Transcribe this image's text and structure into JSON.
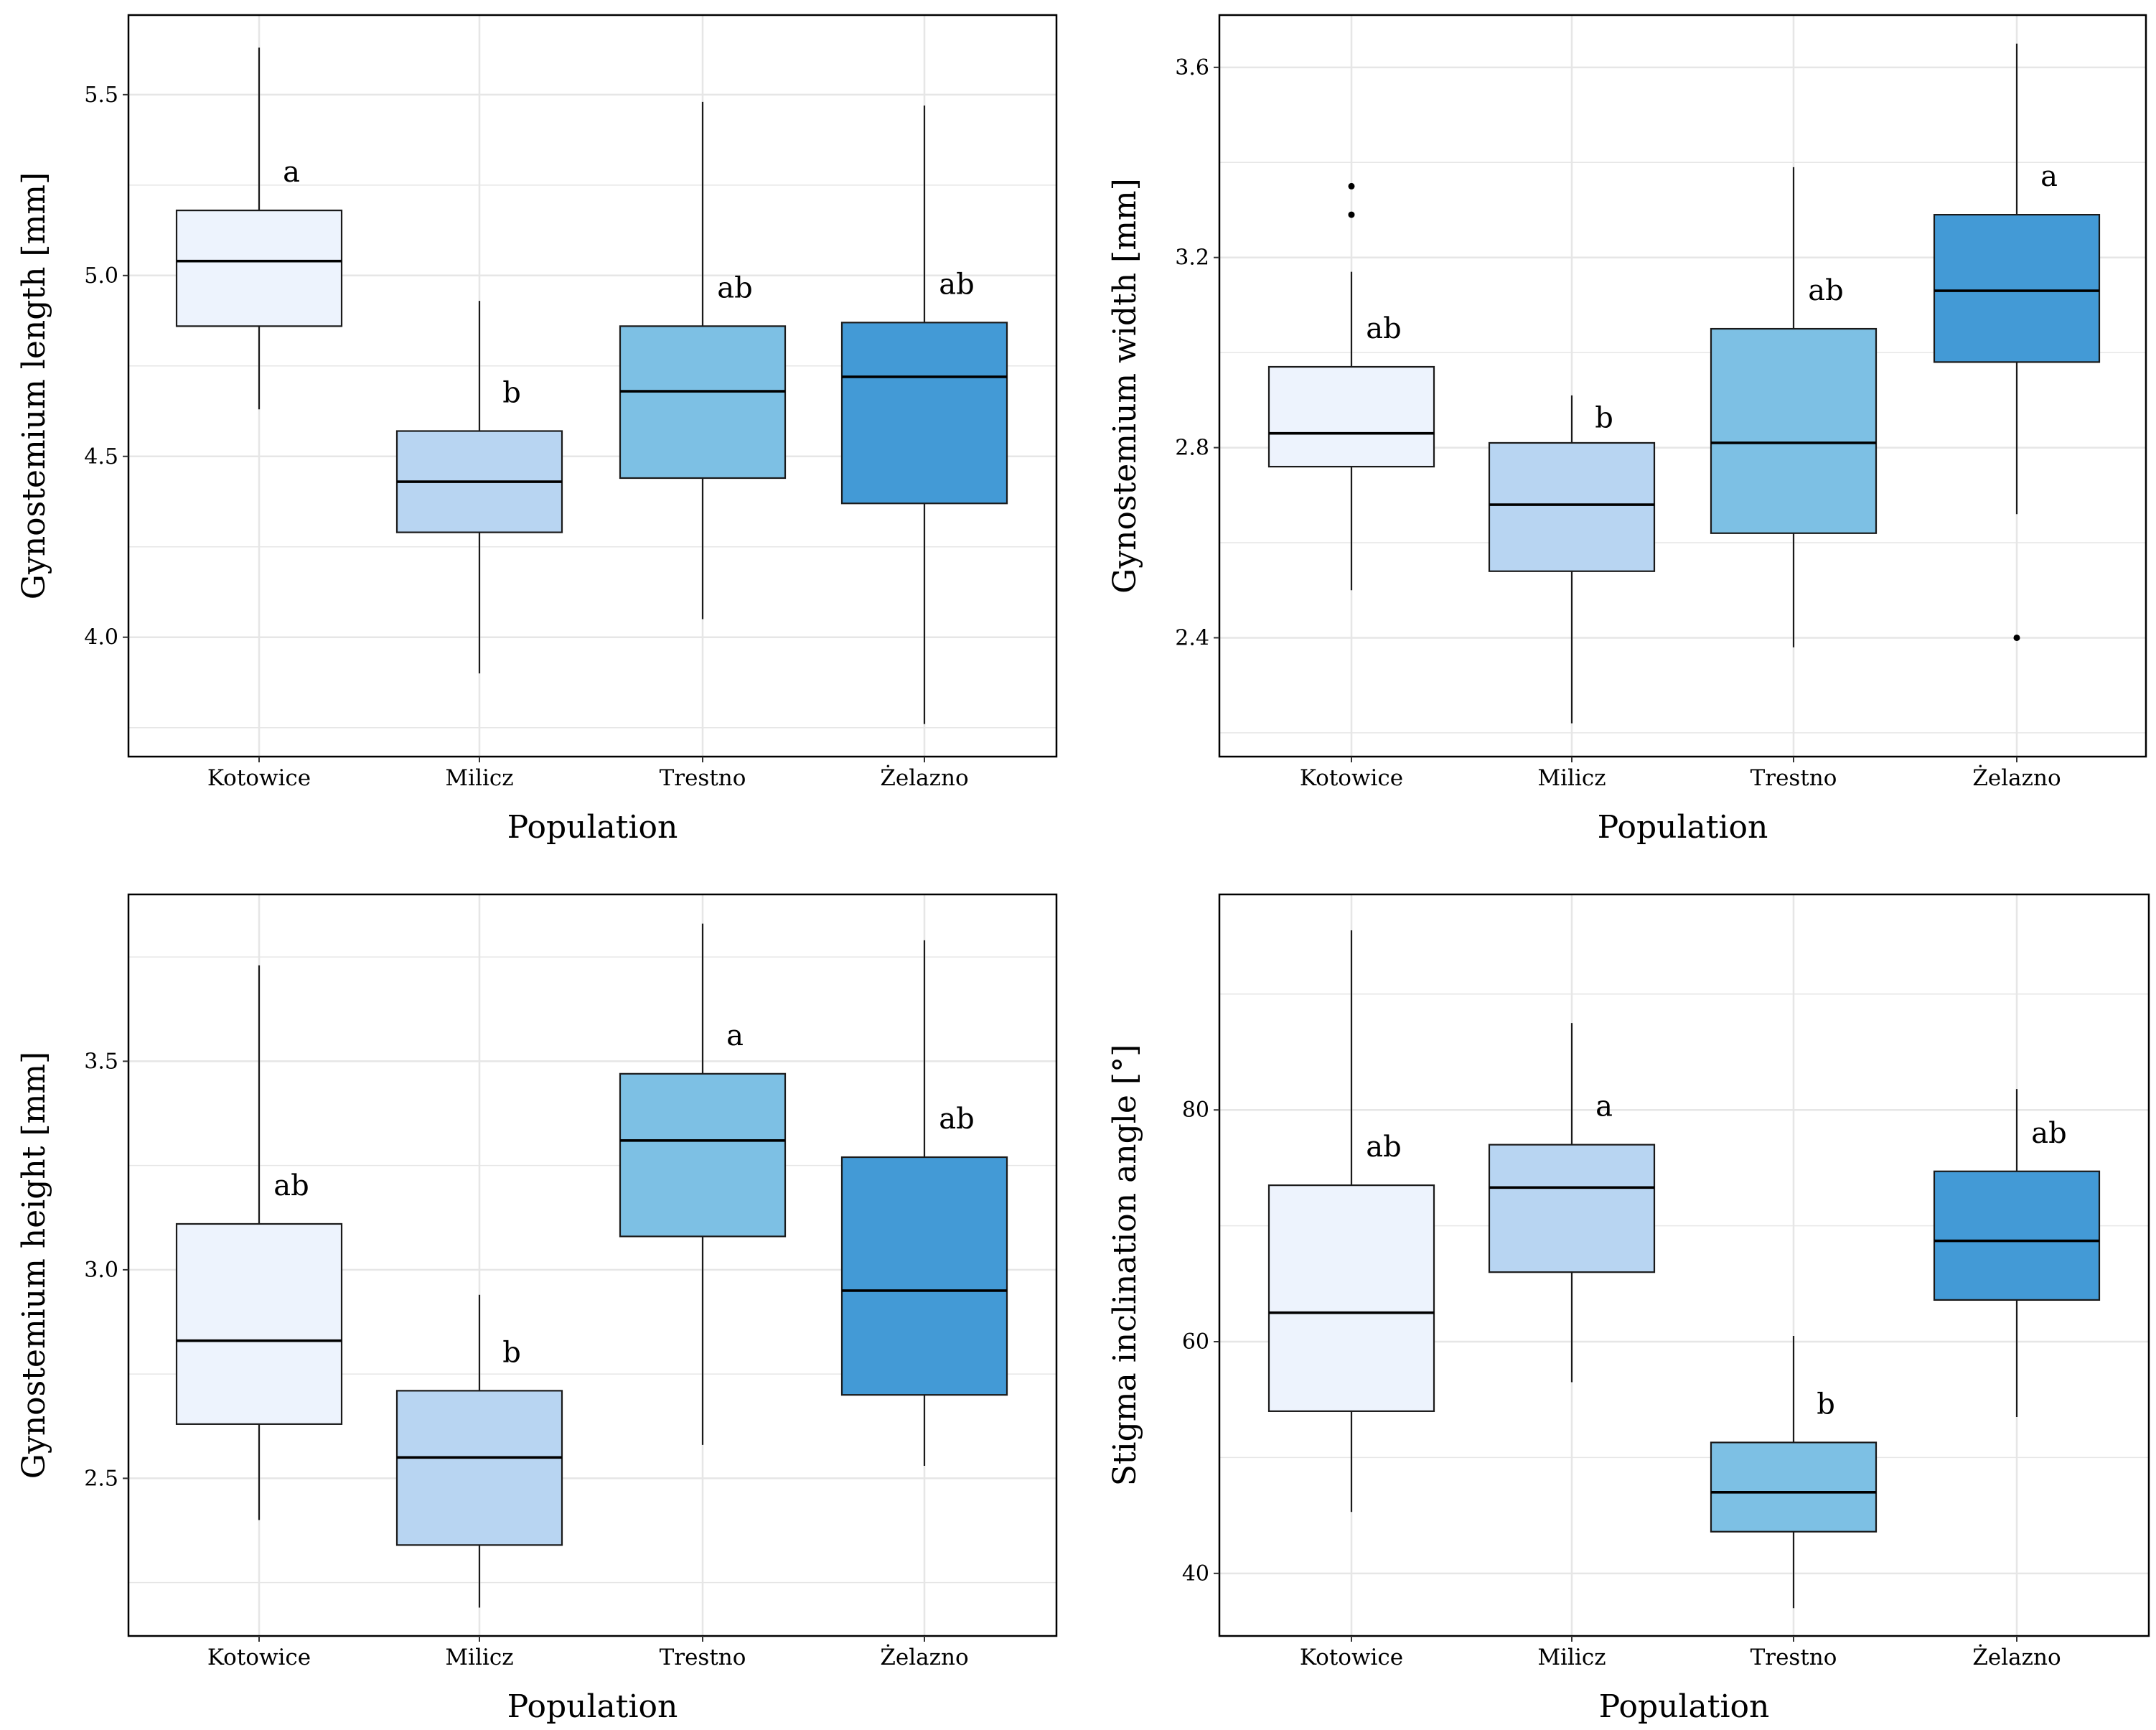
{
  "colors": {
    "Kotowice": "#edf3fd",
    "Milicz": "#b8d5f2",
    "Trestno": "#7dc0e4",
    "Żelazno": "#439ad6",
    "grid": "#e6e6e6",
    "line": "#1a1a1a"
  },
  "chart_data": [
    {
      "type": "box",
      "title": "",
      "xlabel": "Population",
      "ylabel": "Gynostemium length [mm]",
      "categories": [
        "Kotowice",
        "Milicz",
        "Trestno",
        "Żelazno"
      ],
      "ylim": [
        3.67,
        5.72
      ],
      "yticks": [
        4.0,
        4.5,
        5.0,
        5.5
      ],
      "ytick_labels": [
        "4.0",
        "4.5",
        "5.0",
        "5.5"
      ],
      "boxes": [
        {
          "category": "Kotowice",
          "whisker_low": 4.63,
          "q1": 4.86,
          "median": 5.04,
          "q3": 5.18,
          "whisker_high": 5.63,
          "outliers": [],
          "letter": "a"
        },
        {
          "category": "Milicz",
          "whisker_low": 3.9,
          "q1": 4.29,
          "median": 4.43,
          "q3": 4.57,
          "whisker_high": 4.93,
          "outliers": [],
          "letter": "b"
        },
        {
          "category": "Trestno",
          "whisker_low": 4.05,
          "q1": 4.44,
          "median": 4.68,
          "q3": 4.86,
          "whisker_high": 5.48,
          "outliers": [],
          "letter": "ab"
        },
        {
          "category": "Żelazno",
          "whisker_low": 3.76,
          "q1": 4.37,
          "median": 4.72,
          "q3": 4.87,
          "whisker_high": 5.47,
          "outliers": [],
          "letter": "ab"
        }
      ]
    },
    {
      "type": "box",
      "title": "",
      "xlabel": "Population",
      "ylabel": "Gynostemium width [mm]",
      "categories": [
        "Kotowice",
        "Milicz",
        "Trestno",
        "Żelazno"
      ],
      "ylim": [
        2.15,
        3.71
      ],
      "yticks": [
        2.4,
        2.8,
        3.2,
        3.6
      ],
      "ytick_labels": [
        "2.4",
        "2.8",
        "3.2",
        "3.6"
      ],
      "boxes": [
        {
          "category": "Kotowice",
          "whisker_low": 2.5,
          "q1": 2.76,
          "median": 2.83,
          "q3": 2.97,
          "whisker_high": 3.17,
          "outliers": [
            3.29,
            3.35
          ],
          "letter": "ab"
        },
        {
          "category": "Milicz",
          "whisker_low": 2.22,
          "q1": 2.54,
          "median": 2.68,
          "q3": 2.81,
          "whisker_high": 2.91,
          "outliers": [],
          "letter": "b"
        },
        {
          "category": "Trestno",
          "whisker_low": 2.38,
          "q1": 2.62,
          "median": 2.81,
          "q3": 3.05,
          "whisker_high": 3.39,
          "outliers": [],
          "letter": "ab"
        },
        {
          "category": "Żelazno",
          "whisker_low": 2.66,
          "q1": 2.98,
          "median": 3.13,
          "q3": 3.29,
          "whisker_high": 3.65,
          "outliers": [
            2.4
          ],
          "letter": "a"
        }
      ]
    },
    {
      "type": "box",
      "title": "",
      "xlabel": "Population",
      "ylabel": "Gynostemium height [mm]",
      "categories": [
        "Kotowice",
        "Milicz",
        "Trestno",
        "Żelazno"
      ],
      "ylim": [
        2.122,
        3.9
      ],
      "yticks": [
        2.5,
        3.0,
        3.5
      ],
      "ytick_labels": [
        "2.5",
        "3.0",
        "3.5"
      ],
      "boxes": [
        {
          "category": "Kotowice",
          "whisker_low": 2.4,
          "q1": 2.63,
          "median": 2.83,
          "q3": 3.11,
          "whisker_high": 3.73,
          "outliers": [],
          "letter": "ab"
        },
        {
          "category": "Milicz",
          "whisker_low": 2.19,
          "q1": 2.34,
          "median": 2.55,
          "q3": 2.71,
          "whisker_high": 2.94,
          "outliers": [],
          "letter": "b"
        },
        {
          "category": "Trestno",
          "whisker_low": 2.58,
          "q1": 3.08,
          "median": 3.31,
          "q3": 3.47,
          "whisker_high": 3.83,
          "outliers": [],
          "letter": "a"
        },
        {
          "category": "Żelazno",
          "whisker_low": 2.53,
          "q1": 2.7,
          "median": 2.95,
          "q3": 3.27,
          "whisker_high": 3.79,
          "outliers": [],
          "letter": "ab"
        }
      ]
    },
    {
      "type": "box",
      "title": "",
      "xlabel": "Population",
      "ylabel": "Stigma inclination angle [°]",
      "categories": [
        "Kotowice",
        "Milicz",
        "Trestno",
        "Żelazno"
      ],
      "ylim": [
        34.6,
        98.6
      ],
      "yticks": [
        40,
        60,
        80
      ],
      "ytick_labels": [
        "40",
        "60",
        "80"
      ],
      "boxes": [
        {
          "category": "Kotowice",
          "whisker_low": 45.3,
          "q1": 54.0,
          "median": 62.5,
          "q3": 73.5,
          "whisker_high": 95.5,
          "outliers": [],
          "letter": "ab"
        },
        {
          "category": "Milicz",
          "whisker_low": 56.5,
          "q1": 66.0,
          "median": 73.3,
          "q3": 77.0,
          "whisker_high": 87.5,
          "outliers": [],
          "letter": "a"
        },
        {
          "category": "Trestno",
          "whisker_low": 37.0,
          "q1": 43.6,
          "median": 47.0,
          "q3": 51.3,
          "whisker_high": 60.5,
          "outliers": [],
          "letter": "b"
        },
        {
          "category": "Żelazno",
          "whisker_low": 53.5,
          "q1": 63.6,
          "median": 68.7,
          "q3": 74.7,
          "whisker_high": 81.8,
          "outliers": [],
          "letter": "ab"
        }
      ]
    }
  ]
}
